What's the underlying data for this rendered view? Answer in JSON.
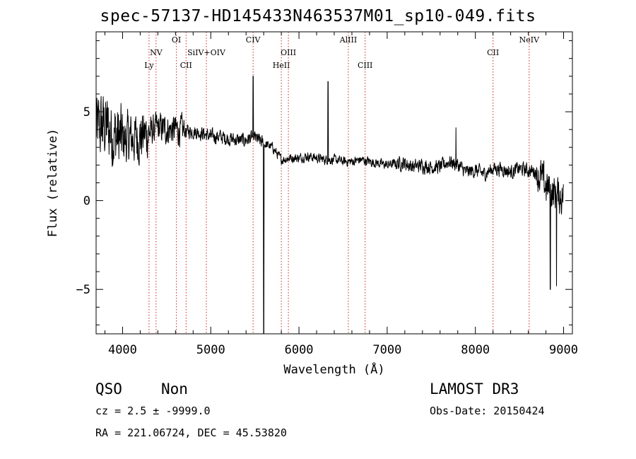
{
  "chart_data": {
    "type": "line",
    "title": "spec-57137-HD145433N463537M01_sp10-049.fits",
    "xlabel": "Wavelength (Å)",
    "ylabel": "Flux (relative)",
    "xlim": [
      3700,
      9100
    ],
    "ylim": [
      -7.5,
      9.5
    ],
    "xticks": [
      4000,
      5000,
      6000,
      7000,
      8000,
      9000
    ],
    "yticks": [
      -5,
      0,
      5
    ],
    "grid": false,
    "line_color": "#000000",
    "marker_color": "#cc2222",
    "lines": [
      {
        "name": "Ly",
        "wavelength": 4300,
        "row": 3
      },
      {
        "name": "NV",
        "wavelength": 4380,
        "row": 2
      },
      {
        "name": "OI",
        "wavelength": 4610,
        "row": 1
      },
      {
        "name": "CII",
        "wavelength": 4720,
        "row": 3
      },
      {
        "name": "SiIV+OIV",
        "wavelength": 4950,
        "row": 2
      },
      {
        "name": "CIV",
        "wavelength": 5480,
        "row": 1
      },
      {
        "name": "HeII",
        "wavelength": 5800,
        "row": 3
      },
      {
        "name": "OIII",
        "wavelength": 5880,
        "row": 2
      },
      {
        "name": "AlIII",
        "wavelength": 6560,
        "row": 1
      },
      {
        "name": "CIII",
        "wavelength": 6750,
        "row": 3
      },
      {
        "name": "CII",
        "wavelength": 8200,
        "row": 2
      },
      {
        "name": "NeIV",
        "wavelength": 8610,
        "row": 1
      }
    ],
    "spectrum": {
      "x_start": 3700,
      "x_end": 9000,
      "anchors": [
        [
          3700,
          4.0
        ],
        [
          3800,
          4.2
        ],
        [
          3900,
          3.7
        ],
        [
          4000,
          3.4
        ],
        [
          4100,
          3.5
        ],
        [
          4200,
          3.6
        ],
        [
          4300,
          3.8
        ],
        [
          4400,
          4.1
        ],
        [
          4500,
          4.0
        ],
        [
          4600,
          4.0
        ],
        [
          4700,
          3.9
        ],
        [
          4800,
          3.9
        ],
        [
          4900,
          3.8
        ],
        [
          5000,
          3.6
        ],
        [
          5100,
          3.6
        ],
        [
          5200,
          3.5
        ],
        [
          5300,
          3.4
        ],
        [
          5400,
          3.4
        ],
        [
          5480,
          3.6
        ],
        [
          5600,
          3.2
        ],
        [
          5700,
          3.0
        ],
        [
          5800,
          2.3
        ],
        [
          5900,
          2.4
        ],
        [
          6000,
          2.4
        ],
        [
          6100,
          2.5
        ],
        [
          6200,
          2.4
        ],
        [
          6300,
          2.3
        ],
        [
          6400,
          2.3
        ],
        [
          6500,
          2.2
        ],
        [
          6600,
          2.2
        ],
        [
          6700,
          2.3
        ],
        [
          6800,
          2.2
        ],
        [
          6900,
          2.1
        ],
        [
          7000,
          2.0
        ],
        [
          7100,
          2.1
        ],
        [
          7200,
          2.1
        ],
        [
          7300,
          1.9
        ],
        [
          7400,
          2.0
        ],
        [
          7500,
          1.9
        ],
        [
          7600,
          1.9
        ],
        [
          7700,
          2.2
        ],
        [
          7800,
          2.0
        ],
        [
          7900,
          1.6
        ],
        [
          8000,
          1.7
        ],
        [
          8100,
          1.5
        ],
        [
          8200,
          1.8
        ],
        [
          8300,
          1.8
        ],
        [
          8400,
          1.6
        ],
        [
          8500,
          1.8
        ],
        [
          8600,
          1.7
        ],
        [
          8700,
          1.6
        ],
        [
          8800,
          0.8
        ],
        [
          8900,
          0.4
        ],
        [
          9000,
          0.2
        ]
      ],
      "features": [
        {
          "x": 5480,
          "y": 7.0
        },
        {
          "x": 5600,
          "y": -7.5
        },
        {
          "x": 6330,
          "y": 6.7
        },
        {
          "x": 7780,
          "y": 4.1
        },
        {
          "x": 8850,
          "y": -5.0
        },
        {
          "x": 8920,
          "y": -4.8
        }
      ]
    }
  },
  "footer": {
    "class_label": "QSO",
    "subclass_label": "Non",
    "survey": "LAMOST DR3",
    "cz_line": "cz = 2.5 ± -9999.0",
    "obs_date": "Obs-Date: 20150424",
    "coords": "RA = 221.06724, DEC =  45.53820"
  }
}
